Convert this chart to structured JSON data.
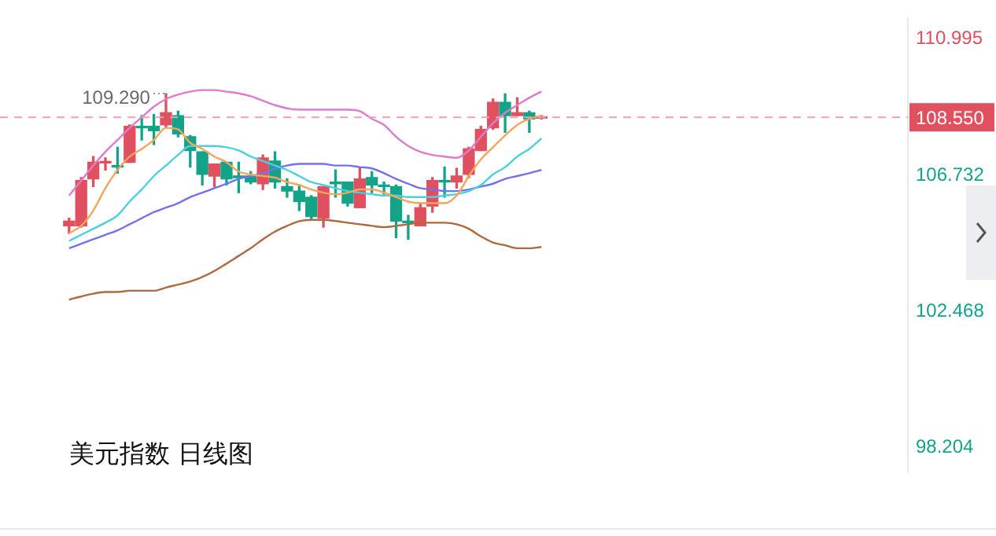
{
  "chart_data": {
    "type": "candlestick",
    "annotations": [
      "美元指数 日线图",
      "109.290"
    ],
    "categories": [
      null,
      null,
      null,
      null,
      null,
      null,
      null,
      null,
      null,
      null,
      null,
      null,
      null,
      null,
      null,
      null,
      null,
      null,
      null,
      null,
      null,
      null,
      null,
      null,
      null,
      null,
      null,
      null,
      null,
      null,
      null,
      null,
      null,
      null,
      null,
      null,
      null,
      null,
      null,
      null
    ],
    "ohlc": [
      [
        105.15,
        105.39,
        104.92,
        105.3
      ],
      [
        105.15,
        106.66,
        105.11,
        106.57
      ],
      [
        106.62,
        107.32,
        106.38,
        107.14
      ],
      [
        107.12,
        107.28,
        106.9,
        107.14
      ],
      [
        107.04,
        107.61,
        106.8,
        106.99
      ],
      [
        107.14,
        108.31,
        107.14,
        108.27
      ],
      [
        108.24,
        108.6,
        107.84,
        108.22
      ],
      [
        108.27,
        108.64,
        107.7,
        108.13
      ],
      [
        108.31,
        109.29,
        108.22,
        108.69
      ],
      [
        108.6,
        108.74,
        107.94,
        108.03
      ],
      [
        107.94,
        107.98,
        106.99,
        107.51
      ],
      [
        107.47,
        107.47,
        106.43,
        106.76
      ],
      [
        106.71,
        107.09,
        106.38,
        107.09
      ],
      [
        107.14,
        107.14,
        106.43,
        106.62
      ],
      [
        106.68,
        107.14,
        106.19,
        106.66
      ],
      [
        106.71,
        106.85,
        106.47,
        106.52
      ],
      [
        106.47,
        107.37,
        106.29,
        107.28
      ],
      [
        107.18,
        107.47,
        106.33,
        106.52
      ],
      [
        106.38,
        106.62,
        106.05,
        106.24
      ],
      [
        106.24,
        106.43,
        105.63,
        105.91
      ],
      [
        106.05,
        106.1,
        105.34,
        105.44
      ],
      [
        105.39,
        106.38,
        105.11,
        106.38
      ],
      [
        106.49,
        106.9,
        106.05,
        106.47
      ],
      [
        106.52,
        106.52,
        105.77,
        105.86
      ],
      [
        105.72,
        106.99,
        105.72,
        106.62
      ],
      [
        106.66,
        106.85,
        106.19,
        106.43
      ],
      [
        106.4,
        106.52,
        106.14,
        106.38
      ],
      [
        106.38,
        106.43,
        104.78,
        105.3
      ],
      [
        105.27,
        105.48,
        104.73,
        105.25
      ],
      [
        105.15,
        105.86,
        105.15,
        105.72
      ],
      [
        105.77,
        106.66,
        105.58,
        106.57
      ],
      [
        106.54,
        106.99,
        106.05,
        106.52
      ],
      [
        106.52,
        106.95,
        106.33,
        106.71
      ],
      [
        106.76,
        107.61,
        106.66,
        107.56
      ],
      [
        107.51,
        108.27,
        107.51,
        108.17
      ],
      [
        108.22,
        109.12,
        108.17,
        109.02
      ],
      [
        109.02,
        109.28,
        108.08,
        108.6
      ],
      [
        108.6,
        109.16,
        108.6,
        108.69
      ],
      [
        108.69,
        108.74,
        108.08,
        108.5
      ],
      [
        108.52,
        108.6,
        108.5,
        108.55
      ]
    ],
    "colors": [
      "#e0505e",
      "#e0505e",
      "#e0505e",
      "#e0505e",
      "#13a389",
      "#e0505e",
      "#13a389",
      "#13a389",
      "#e0505e",
      "#13a389",
      "#13a389",
      "#13a389",
      "#e0505e",
      "#13a389",
      "#13a389",
      "#13a389",
      "#e0505e",
      "#13a389",
      "#13a389",
      "#13a389",
      "#13a389",
      "#e0505e",
      "#13a389",
      "#13a389",
      "#e0505e",
      "#13a389",
      "#13a389",
      "#13a389",
      "#13a389",
      "#e0505e",
      "#e0505e",
      "#13a389",
      "#e0505e",
      "#e0505e",
      "#e0505e",
      "#e0505e",
      "#13a389",
      "#e0505e",
      "#13a389",
      "#e0505e"
    ],
    "series": [
      {
        "type": "line",
        "color": "#e07acb",
        "values": [
          106.1,
          106.57,
          107.04,
          107.47,
          107.84,
          108.22,
          108.55,
          108.88,
          109.12,
          109.26,
          109.35,
          109.4,
          109.4,
          109.35,
          109.3,
          109.21,
          109.07,
          108.93,
          108.83,
          108.79,
          108.79,
          108.79,
          108.79,
          108.79,
          108.74,
          108.5,
          108.31,
          107.94,
          107.65,
          107.47,
          107.37,
          107.32,
          107.28,
          107.51,
          107.94,
          108.36,
          108.69,
          108.93,
          109.16,
          109.35
        ]
      },
      {
        "type": "line",
        "color": "#f5a55a",
        "values": [
          104.92,
          105.15,
          105.63,
          106.33,
          106.9,
          107.32,
          107.56,
          107.84,
          108.22,
          108.17,
          107.75,
          107.56,
          107.32,
          107.14,
          106.85,
          106.76,
          106.71,
          106.66,
          106.52,
          106.43,
          106.29,
          106.19,
          106.14,
          106.19,
          106.29,
          106.29,
          106.19,
          106.05,
          105.91,
          105.86,
          105.86,
          105.86,
          106.1,
          106.71,
          107.23,
          107.61,
          107.98,
          108.31,
          108.5,
          108.6
        ]
      },
      {
        "type": "line",
        "color": "#4cd0e0",
        "values": [
          104.68,
          104.87,
          105.06,
          105.25,
          105.48,
          105.91,
          106.29,
          106.71,
          107.04,
          107.37,
          107.65,
          107.65,
          107.65,
          107.61,
          107.51,
          107.32,
          107.18,
          107.04,
          106.9,
          106.71,
          106.52,
          106.43,
          106.33,
          106.24,
          106.19,
          106.14,
          106.1,
          106.1,
          106.05,
          106.05,
          106.05,
          106.1,
          106.14,
          106.24,
          106.43,
          106.76,
          106.99,
          107.32,
          107.56,
          107.89
        ]
      },
      {
        "type": "line",
        "color": "#7272ee",
        "values": [
          104.45,
          104.59,
          104.73,
          104.87,
          105.01,
          105.2,
          105.39,
          105.58,
          105.72,
          105.86,
          106.05,
          106.19,
          106.33,
          106.47,
          106.62,
          106.71,
          106.8,
          106.95,
          107.04,
          107.09,
          107.09,
          107.09,
          107.04,
          107.04,
          106.99,
          106.95,
          106.8,
          106.62,
          106.47,
          106.33,
          106.29,
          106.24,
          106.24,
          106.29,
          106.38,
          106.47,
          106.62,
          106.71,
          106.8,
          106.9
        ]
      },
      {
        "type": "line",
        "color": "#b0683e",
        "values": [
          102.84,
          102.94,
          103.03,
          103.08,
          103.08,
          103.12,
          103.12,
          103.12,
          103.22,
          103.31,
          103.41,
          103.55,
          103.74,
          103.97,
          104.21,
          104.45,
          104.73,
          104.97,
          105.15,
          105.3,
          105.34,
          105.34,
          105.3,
          105.25,
          105.2,
          105.15,
          105.11,
          105.15,
          105.2,
          105.25,
          105.25,
          105.25,
          105.2,
          105.06,
          104.82,
          104.63,
          104.54,
          104.45,
          104.45,
          104.49
        ]
      }
    ],
    "ylim": [
      97.46,
      111.62
    ],
    "yticks": [
      110.995,
      106.732,
      102.468,
      98.204
    ],
    "ref_lines": [
      {
        "axis": "y",
        "value": 108.55,
        "label": "108.550",
        "color": "#eea0b4",
        "line_style": "dashed"
      }
    ],
    "legend": false,
    "grid": false
  }
}
